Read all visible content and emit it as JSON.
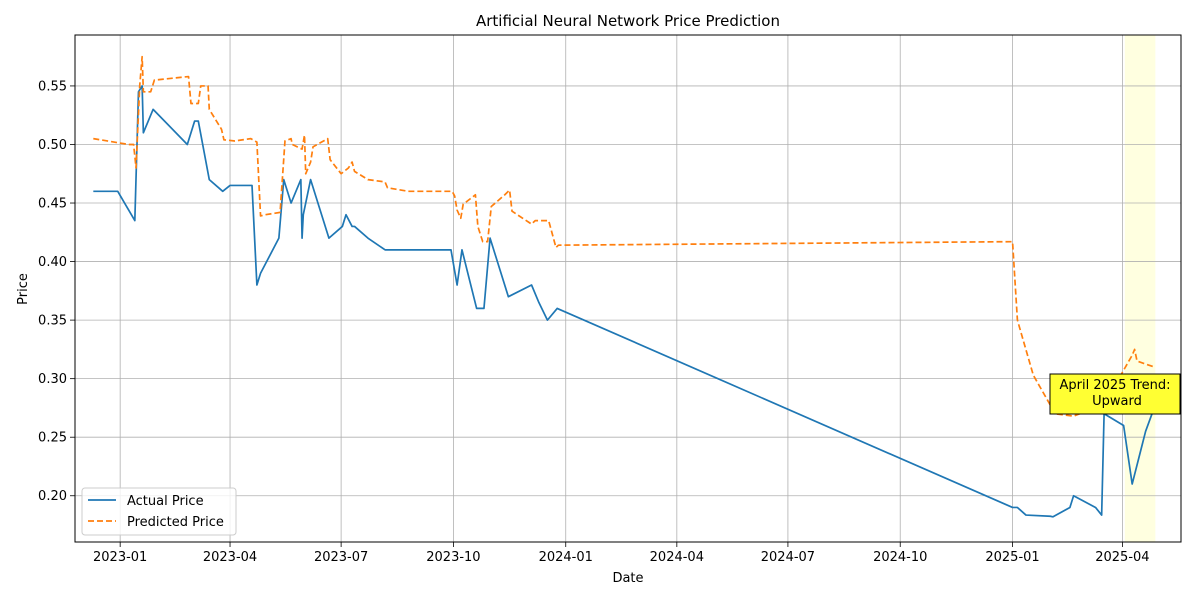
{
  "chart_data": {
    "type": "line",
    "title": "Artificial Neural Network Price Prediction",
    "xlabel": "Date",
    "ylabel": "Price",
    "xlim": [
      "2022-11-25",
      "2025-05-19"
    ],
    "ylim": [
      0.1605,
      0.5935
    ],
    "x_ticks": [
      {
        "date": "2023-01-01",
        "label": "2023-01"
      },
      {
        "date": "2023-04-01",
        "label": "2023-04"
      },
      {
        "date": "2023-07-01",
        "label": "2023-07"
      },
      {
        "date": "2023-10-01",
        "label": "2023-10"
      },
      {
        "date": "2024-01-01",
        "label": "2024-01"
      },
      {
        "date": "2024-04-01",
        "label": "2024-04"
      },
      {
        "date": "2024-07-01",
        "label": "2024-07"
      },
      {
        "date": "2024-10-01",
        "label": "2024-10"
      },
      {
        "date": "2025-01-01",
        "label": "2025-01"
      },
      {
        "date": "2025-04-01",
        "label": "2025-04"
      }
    ],
    "y_ticks": [
      {
        "value": 0.2,
        "label": "0.20"
      },
      {
        "value": 0.25,
        "label": "0.25"
      },
      {
        "value": 0.3,
        "label": "0.30"
      },
      {
        "value": 0.35,
        "label": "0.35"
      },
      {
        "value": 0.4,
        "label": "0.40"
      },
      {
        "value": 0.45,
        "label": "0.45"
      },
      {
        "value": 0.5,
        "label": "0.50"
      },
      {
        "value": 0.55,
        "label": "0.55"
      }
    ],
    "grid": true,
    "legend_position": "lower-left",
    "series": [
      {
        "name": "Actual Price",
        "color": "#1f77b4",
        "style": "solid",
        "points": [
          [
            "2022-12-10",
            0.46
          ],
          [
            "2022-12-30",
            0.46
          ],
          [
            "2023-01-13",
            0.435
          ],
          [
            "2023-01-16",
            0.545
          ],
          [
            "2023-01-19",
            0.55
          ],
          [
            "2023-01-20",
            0.51
          ],
          [
            "2023-01-24",
            0.52
          ],
          [
            "2023-01-28",
            0.53
          ],
          [
            "2023-02-25",
            0.5
          ],
          [
            "2023-03-03",
            0.52
          ],
          [
            "2023-03-06",
            0.52
          ],
          [
            "2023-03-15",
            0.47
          ],
          [
            "2023-03-26",
            0.46
          ],
          [
            "2023-04-01",
            0.465
          ],
          [
            "2023-04-15",
            0.465
          ],
          [
            "2023-04-19",
            0.465
          ],
          [
            "2023-04-23",
            0.38
          ],
          [
            "2023-04-26",
            0.39
          ],
          [
            "2023-05-11",
            0.42
          ],
          [
            "2023-05-15",
            0.47
          ],
          [
            "2023-05-21",
            0.45
          ],
          [
            "2023-05-29",
            0.47
          ],
          [
            "2023-05-30",
            0.42
          ],
          [
            "2023-05-31",
            0.44
          ],
          [
            "2023-06-06",
            0.47
          ],
          [
            "2023-06-21",
            0.42
          ],
          [
            "2023-07-02",
            0.43
          ],
          [
            "2023-07-05",
            0.44
          ],
          [
            "2023-07-10",
            0.43
          ],
          [
            "2023-07-12",
            0.43
          ],
          [
            "2023-07-23",
            0.42
          ],
          [
            "2023-08-06",
            0.41
          ],
          [
            "2023-09-29",
            0.41
          ],
          [
            "2023-10-04",
            0.38
          ],
          [
            "2023-10-08",
            0.41
          ],
          [
            "2023-10-20",
            0.36
          ],
          [
            "2023-10-26",
            0.36
          ],
          [
            "2023-10-31",
            0.42
          ],
          [
            "2023-11-15",
            0.37
          ],
          [
            "2023-12-04",
            0.38
          ],
          [
            "2023-12-10",
            0.365
          ],
          [
            "2023-12-17",
            0.35
          ],
          [
            "2023-12-25",
            0.36
          ],
          [
            "2025-01-01",
            0.19
          ],
          [
            "2025-01-05",
            0.19
          ],
          [
            "2025-01-12",
            0.1835
          ],
          [
            "2025-02-01",
            0.1825
          ],
          [
            "2025-02-03",
            0.182
          ],
          [
            "2025-02-17",
            0.19
          ],
          [
            "2025-02-20",
            0.2
          ],
          [
            "2025-03-10",
            0.19
          ],
          [
            "2025-03-15",
            0.1835
          ],
          [
            "2025-03-17",
            0.27
          ],
          [
            "2025-04-02",
            0.26
          ],
          [
            "2025-04-09",
            0.21
          ],
          [
            "2025-04-20",
            0.255
          ],
          [
            "2025-04-27",
            0.275
          ]
        ]
      },
      {
        "name": "Predicted Price",
        "color": "#ff7f0e",
        "style": "dashed",
        "points": [
          [
            "2022-12-10",
            0.505
          ],
          [
            "2023-01-08",
            0.5
          ],
          [
            "2023-01-12",
            0.5
          ],
          [
            "2023-01-14",
            0.48
          ],
          [
            "2023-01-17",
            0.55
          ],
          [
            "2023-01-19",
            0.575
          ],
          [
            "2023-01-20",
            0.545
          ],
          [
            "2023-01-26",
            0.545
          ],
          [
            "2023-01-29",
            0.555
          ],
          [
            "2023-02-26",
            0.558
          ],
          [
            "2023-02-28",
            0.535
          ],
          [
            "2023-03-06",
            0.535
          ],
          [
            "2023-03-08",
            0.55
          ],
          [
            "2023-03-14",
            0.55
          ],
          [
            "2023-03-15",
            0.53
          ],
          [
            "2023-03-25",
            0.513
          ],
          [
            "2023-03-27",
            0.504
          ],
          [
            "2023-04-05",
            0.503
          ],
          [
            "2023-04-18",
            0.505
          ],
          [
            "2023-04-23",
            0.502
          ],
          [
            "2023-04-26",
            0.439
          ],
          [
            "2023-04-30",
            0.44
          ],
          [
            "2023-05-12",
            0.442
          ],
          [
            "2023-05-16",
            0.503
          ],
          [
            "2023-05-21",
            0.505
          ],
          [
            "2023-05-22",
            0.5
          ],
          [
            "2023-05-30",
            0.496
          ],
          [
            "2023-06-01",
            0.508
          ],
          [
            "2023-06-02",
            0.475
          ],
          [
            "2023-06-06",
            0.485
          ],
          [
            "2023-06-08",
            0.498
          ],
          [
            "2023-06-20",
            0.505
          ],
          [
            "2023-06-22",
            0.487
          ],
          [
            "2023-07-01",
            0.475
          ],
          [
            "2023-07-07",
            0.48
          ],
          [
            "2023-07-10",
            0.485
          ],
          [
            "2023-07-12",
            0.477
          ],
          [
            "2023-07-23",
            0.47
          ],
          [
            "2023-08-06",
            0.468
          ],
          [
            "2023-08-08",
            0.463
          ],
          [
            "2023-08-25",
            0.46
          ],
          [
            "2023-09-30",
            0.46
          ],
          [
            "2023-10-02",
            0.456
          ],
          [
            "2023-10-04",
            0.444
          ],
          [
            "2023-10-07",
            0.437
          ],
          [
            "2023-10-09",
            0.449
          ],
          [
            "2023-10-19",
            0.457
          ],
          [
            "2023-10-21",
            0.43
          ],
          [
            "2023-10-25",
            0.417
          ],
          [
            "2023-10-29",
            0.417
          ],
          [
            "2023-11-01",
            0.447
          ],
          [
            "2023-11-12",
            0.457
          ],
          [
            "2023-11-16",
            0.461
          ],
          [
            "2023-11-18",
            0.443
          ],
          [
            "2023-12-04",
            0.432
          ],
          [
            "2023-12-07",
            0.435
          ],
          [
            "2023-12-18",
            0.435
          ],
          [
            "2023-12-24",
            0.412
          ],
          [
            "2023-12-26",
            0.414
          ],
          [
            "2025-01-01",
            0.417
          ],
          [
            "2025-01-05",
            0.35
          ],
          [
            "2025-01-18",
            0.303
          ],
          [
            "2025-02-05",
            0.27
          ],
          [
            "2025-02-20",
            0.268
          ],
          [
            "2025-03-17",
            0.278
          ],
          [
            "2025-04-09",
            0.32
          ],
          [
            "2025-04-11",
            0.325
          ],
          [
            "2025-04-13",
            0.315
          ],
          [
            "2025-04-27",
            0.31
          ]
        ]
      }
    ],
    "highlight": {
      "start": "2025-04-03",
      "end": "2025-04-28",
      "color": "#ffffe0"
    },
    "annotation": {
      "text_line1": "April 2025 Trend:",
      "text_line2": "Upward",
      "background": "#ffff33"
    }
  }
}
